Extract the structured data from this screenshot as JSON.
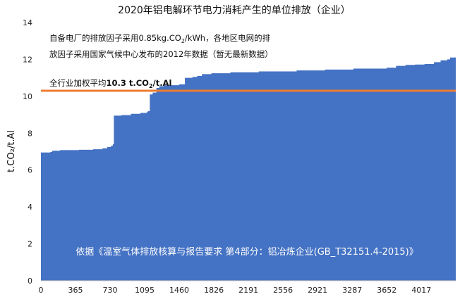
{
  "chart_data": {
    "type": "area",
    "title": "2020年铝电解环节电力消耗产生的单位排放（企业）",
    "ylabel": "t.CO₂/t.Al",
    "xlabel": "",
    "xlim": [
      0,
      4380
    ],
    "ylim": [
      0,
      14
    ],
    "xticks": [
      0,
      365,
      730,
      1095,
      1460,
      1826,
      2191,
      2556,
      2921,
      3287,
      3652,
      4017
    ],
    "yticks": [
      0,
      2,
      4,
      6,
      8,
      10,
      12,
      14
    ],
    "grid": false,
    "series": [
      {
        "color": "#4472c4",
        "points": [
          [
            0,
            6.95
          ],
          [
            100,
            6.98
          ],
          [
            120,
            7.05
          ],
          [
            200,
            7.08
          ],
          [
            400,
            7.1
          ],
          [
            550,
            7.13
          ],
          [
            650,
            7.18
          ],
          [
            700,
            7.25
          ],
          [
            740,
            7.32
          ],
          [
            760,
            7.4
          ],
          [
            770,
            8.95
          ],
          [
            850,
            8.98
          ],
          [
            950,
            9.05
          ],
          [
            1050,
            9.1
          ],
          [
            1120,
            9.16
          ],
          [
            1130,
            9.2
          ],
          [
            1150,
            10.1
          ],
          [
            1180,
            10.2
          ],
          [
            1220,
            10.45
          ],
          [
            1250,
            10.55
          ],
          [
            1300,
            10.6
          ],
          [
            1460,
            10.65
          ],
          [
            1520,
            11.0
          ],
          [
            1600,
            11.05
          ],
          [
            1650,
            11.1
          ],
          [
            1700,
            11.2
          ],
          [
            1800,
            11.25
          ],
          [
            2000,
            11.3
          ],
          [
            2300,
            11.35
          ],
          [
            2700,
            11.4
          ],
          [
            3000,
            11.45
          ],
          [
            3300,
            11.5
          ],
          [
            3650,
            11.55
          ],
          [
            3750,
            11.65
          ],
          [
            3850,
            11.7
          ],
          [
            3950,
            11.72
          ],
          [
            4050,
            11.75
          ],
          [
            4150,
            11.85
          ],
          [
            4220,
            11.95
          ],
          [
            4290,
            12.0
          ],
          [
            4320,
            12.1
          ],
          [
            4380,
            12.1
          ]
        ]
      }
    ],
    "average_line": {
      "value": 10.3,
      "label_prefix": "全行业加权平均",
      "label_value": "10.3 t.CO",
      "label_sub": "2",
      "label_suffix": "/t.Al",
      "color": "#ed7d31"
    },
    "annotations": {
      "note_line1_a": "自备电厂的排放因子采用0.85kg.CO",
      "note_line1_sub": "2",
      "note_line1_b": "/kWh，各地区电网的排",
      "note_line2": "放因子采用国家气候中心发布的2012年数据（暂无最新数据）",
      "footer": "依据《温室气体排放核算与报告要求 第4部分：铝冶炼企业(GB_T32151.4-2015)》"
    }
  }
}
